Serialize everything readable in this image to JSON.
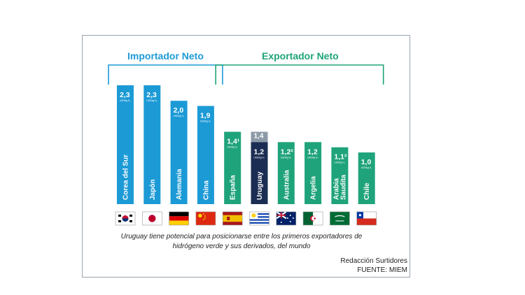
{
  "chart_data": {
    "type": "bar",
    "unit_label": "USD/kg H₂",
    "groups": [
      {
        "name": "Importador Neto",
        "color": "#1c9ad6"
      },
      {
        "name": "Exportador Neto",
        "color": "#1fa37a"
      }
    ],
    "categories": [
      "Corea del Sur",
      "Japón",
      "Alemania",
      "China",
      "España",
      "Uruguay",
      "Australia",
      "Argelia",
      "Arabia Saudita",
      "Chile"
    ],
    "values": [
      2.3,
      2.3,
      2.0,
      1.9,
      1.4,
      1.2,
      1.2,
      1.2,
      1.1,
      1.0
    ],
    "value_labels": [
      "2,3",
      "2,3",
      "2,0",
      "1,9",
      "1,4¹",
      "1,2",
      "1,2²",
      "1,2",
      "1,1²",
      "1,0"
    ],
    "group_index": [
      0,
      0,
      0,
      0,
      1,
      1,
      1,
      1,
      1,
      1
    ],
    "highlight": {
      "category": "Uruguay",
      "color": "#1b2d52",
      "extra_value": 1.4,
      "extra_label": "1,4",
      "extra_color": "#8c9aa8"
    },
    "ylim": [
      0,
      2.3
    ]
  },
  "caption": "Uruguay tiene potencial para posicionarse entre los primeros exportadores de hidrógeno verde y sus derivados, del mundo",
  "credit_line1": "Redacción Surtidores",
  "credit_line2": "FUENTE: MIEM",
  "flags": [
    "south-korea-flag",
    "japan-flag",
    "germany-flag",
    "china-flag",
    "spain-flag",
    "uruguay-flag",
    "australia-flag",
    "algeria-flag",
    "saudi-arabia-flag",
    "chile-flag"
  ]
}
